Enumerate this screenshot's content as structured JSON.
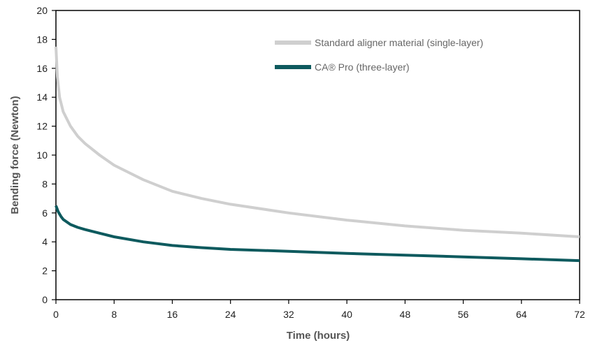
{
  "chart_data": {
    "type": "line",
    "title": "",
    "xlabel": "Time (hours)",
    "ylabel": "Bending force (Newton)",
    "xlim": [
      0,
      72
    ],
    "ylim": [
      0,
      20
    ],
    "x_ticks": [
      0,
      8,
      16,
      24,
      32,
      40,
      48,
      56,
      64,
      72
    ],
    "y_ticks": [
      0,
      2,
      4,
      6,
      8,
      10,
      12,
      14,
      16,
      18,
      20
    ],
    "grid": false,
    "legend_position": "top-right",
    "series": [
      {
        "name": "Standard aligner material (single-layer)",
        "color": "#cfcfcf",
        "x": [
          0,
          0.2,
          0.5,
          1,
          2,
          3,
          4,
          6,
          8,
          12,
          16,
          20,
          24,
          32,
          40,
          48,
          56,
          64,
          72
        ],
        "y": [
          17.5,
          15.4,
          14.0,
          13.0,
          12.0,
          11.3,
          10.8,
          10.0,
          9.3,
          8.3,
          7.5,
          7.0,
          6.6,
          6.0,
          5.5,
          5.1,
          4.8,
          4.6,
          4.35
        ]
      },
      {
        "name": "CA® Pro (three-layer)",
        "color": "#0e5a5e",
        "x": [
          0,
          0.3,
          0.7,
          1,
          2,
          3,
          4,
          6,
          8,
          12,
          16,
          20,
          24,
          32,
          40,
          48,
          56,
          64,
          72
        ],
        "y": [
          6.5,
          6.1,
          5.75,
          5.55,
          5.2,
          5.0,
          4.85,
          4.6,
          4.35,
          4.0,
          3.75,
          3.6,
          3.48,
          3.35,
          3.2,
          3.08,
          2.96,
          2.83,
          2.7
        ]
      }
    ]
  }
}
